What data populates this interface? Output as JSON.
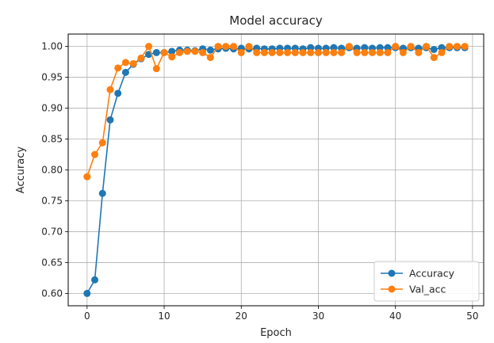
{
  "chart_data": {
    "type": "line",
    "title": "Model accuracy",
    "xlabel": "Epoch",
    "ylabel": "Accuracy",
    "xlim": [
      -2.45,
      51.45
    ],
    "ylim": [
      0.58,
      1.02
    ],
    "xticks": [
      0,
      10,
      20,
      30,
      40,
      50
    ],
    "xtick_labels": [
      "0",
      "10",
      "20",
      "30",
      "40",
      "50"
    ],
    "yticks": [
      0.6,
      0.65,
      0.7,
      0.75,
      0.8,
      0.85,
      0.9,
      0.95,
      1.0
    ],
    "ytick_labels": [
      "0.60",
      "0.65",
      "0.70",
      "0.75",
      "0.80",
      "0.85",
      "0.90",
      "0.95",
      "1.00"
    ],
    "grid": true,
    "legend_position": "lower right",
    "x": [
      0,
      1,
      2,
      3,
      4,
      5,
      6,
      7,
      8,
      9,
      10,
      11,
      12,
      13,
      14,
      15,
      16,
      17,
      18,
      19,
      20,
      21,
      22,
      23,
      24,
      25,
      26,
      27,
      28,
      29,
      30,
      31,
      32,
      33,
      34,
      35,
      36,
      37,
      38,
      39,
      40,
      41,
      42,
      43,
      44,
      45,
      46,
      47,
      48,
      49
    ],
    "series": [
      {
        "name": "Accuracy",
        "color": "#1f77b4",
        "values": [
          0.6,
          0.622,
          0.762,
          0.881,
          0.924,
          0.958,
          0.971,
          0.98,
          0.987,
          0.99,
          0.99,
          0.992,
          0.994,
          0.994,
          0.993,
          0.996,
          0.994,
          0.996,
          0.997,
          0.996,
          0.997,
          0.996,
          0.997,
          0.996,
          0.996,
          0.997,
          0.997,
          0.997,
          0.996,
          0.998,
          0.997,
          0.997,
          0.998,
          0.997,
          0.998,
          0.997,
          0.998,
          0.997,
          0.998,
          0.998,
          0.998,
          0.997,
          0.998,
          0.997,
          0.998,
          0.995,
          0.998,
          0.998,
          0.998,
          0.998
        ]
      },
      {
        "name": "Val_acc",
        "color": "#ff7f0e",
        "values": [
          0.789,
          0.825,
          0.844,
          0.93,
          0.965,
          0.974,
          0.972,
          0.981,
          1.0,
          0.964,
          0.99,
          0.983,
          0.99,
          0.992,
          0.992,
          0.99,
          0.982,
          1.0,
          1.0,
          1.0,
          0.99,
          1.0,
          0.99,
          0.99,
          0.99,
          0.99,
          0.99,
          0.99,
          0.99,
          0.99,
          0.99,
          0.99,
          0.99,
          0.99,
          1.0,
          0.99,
          0.99,
          0.99,
          0.99,
          0.99,
          1.0,
          0.99,
          1.0,
          0.99,
          1.0,
          0.982,
          0.99,
          1.0,
          1.0,
          1.0
        ]
      }
    ]
  }
}
